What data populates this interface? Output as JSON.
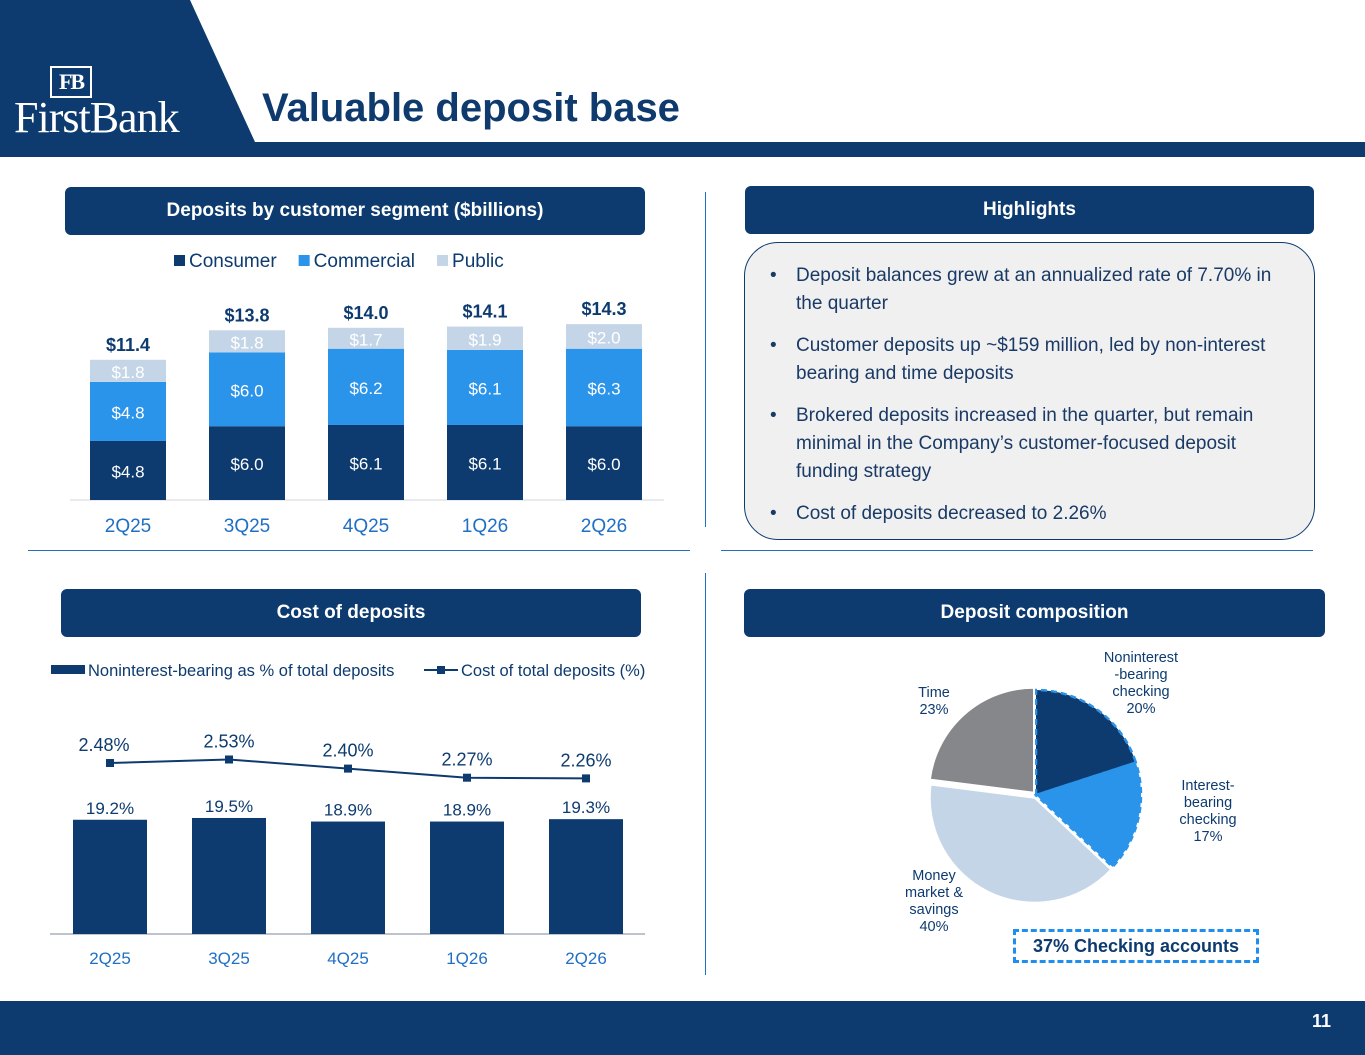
{
  "header": {
    "logo_mark": "FB",
    "logo_text": "FirstBank",
    "title": "Valuable deposit base"
  },
  "colors": {
    "navy": "#0d3b6f",
    "blue": "#2a93ea",
    "light": "#c5d5e8",
    "gray": "#86878b",
    "accent": "#1f6fc4"
  },
  "sections": {
    "deposits_segment": "Deposits by customer segment ($billions)",
    "highlights": "Highlights",
    "cost_of_deposits": "Cost of deposits",
    "deposit_composition": "Deposit composition"
  },
  "highlights": [
    "Deposit balances grew at an annualized rate of 7.70% in the quarter",
    "Customer deposits up ~$159 million, led by non-interest bearing and time deposits",
    "Brokered deposits increased in the quarter, but remain minimal in the Company’s customer-focused deposit funding strategy",
    "Cost of deposits decreased to 2.26%"
  ],
  "bullet": "•",
  "checking_callout": "37% Checking accounts",
  "page_number": "11",
  "chart_data": [
    {
      "type": "bar",
      "stacked": true,
      "categories": [
        "2Q25",
        "3Q25",
        "4Q25",
        "1Q26",
        "2Q26"
      ],
      "series": [
        {
          "name": "Consumer",
          "values": [
            4.8,
            6.0,
            6.1,
            6.1,
            6.0
          ],
          "labels": [
            "$4.8",
            "$6.0",
            "$6.1",
            "$6.1",
            "$6.0"
          ],
          "color": "#0d3b6f"
        },
        {
          "name": "Commercial",
          "values": [
            4.8,
            6.0,
            6.2,
            6.1,
            6.3
          ],
          "labels": [
            "$4.8",
            "$6.0",
            "$6.2",
            "$6.1",
            "$6.3"
          ],
          "color": "#2a93ea"
        },
        {
          "name": "Public",
          "values": [
            1.8,
            1.8,
            1.7,
            1.9,
            2.0
          ],
          "labels": [
            "$1.8",
            "$1.8",
            "$1.7",
            "$1.9",
            "$2.0"
          ],
          "color": "#c5d5e8"
        }
      ],
      "totals": [
        "$11.4",
        "$13.8",
        "$14.0",
        "$14.1",
        "$14.3"
      ],
      "legend_position": "top"
    },
    {
      "type": "bar+line",
      "categories": [
        "2Q25",
        "3Q25",
        "4Q25",
        "1Q26",
        "2Q26"
      ],
      "series": [
        {
          "name": "Noninterest-bearing as % of total deposits",
          "kind": "bar",
          "values": [
            19.2,
            19.5,
            18.9,
            18.9,
            19.3
          ],
          "labels": [
            "19.2%",
            "19.5%",
            "18.9%",
            "18.9%",
            "19.3%"
          ],
          "color": "#0d3b6f"
        },
        {
          "name": "Cost of total deposits (%)",
          "kind": "line",
          "values": [
            2.48,
            2.53,
            2.4,
            2.27,
            2.26
          ],
          "labels": [
            "2.48%",
            "2.53%",
            "2.40%",
            "2.27%",
            "2.26%"
          ],
          "color": "#0d3b6f"
        }
      ],
      "legend_position": "top"
    },
    {
      "type": "pie",
      "slices": [
        {
          "label": "Noninterest -bearing checking",
          "lines": [
            "Noninterest",
            "-bearing",
            "checking",
            "20%"
          ],
          "value": 20,
          "color": "#0d3b6f"
        },
        {
          "label": "Interest-bearing checking",
          "lines": [
            "Interest-",
            "bearing",
            "checking",
            "17%"
          ],
          "value": 17,
          "color": "#2a93ea"
        },
        {
          "label": "Money market & savings",
          "lines": [
            "Money",
            "market &",
            "savings",
            "40%"
          ],
          "value": 40,
          "color": "#c5d5e8"
        },
        {
          "label": "Time",
          "lines": [
            "Time",
            "23%"
          ],
          "value": 23,
          "color": "#86878b"
        }
      ]
    }
  ]
}
